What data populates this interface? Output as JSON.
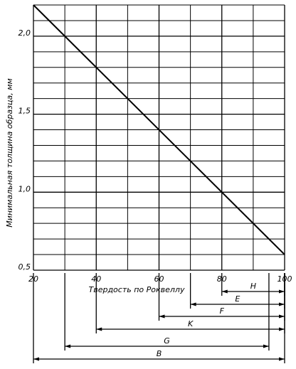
{
  "chart_data": {
    "type": "line",
    "ylabel": "Минимальная толщина образца, мм",
    "xlabel": "Твердость по Роквеллу",
    "x": [
      20,
      100
    ],
    "values": [
      2.2,
      0.6
    ],
    "color": "#000000",
    "xlim": [
      20,
      100
    ],
    "ylim": [
      0.5,
      2.2
    ],
    "xticks": [
      20,
      40,
      60,
      80,
      100
    ],
    "yticks": [
      {
        "value": 0.5,
        "label": "0,5"
      },
      {
        "value": 1.0,
        "label": "1,0"
      },
      {
        "value": 1.5,
        "label": "1,5"
      },
      {
        "value": 2.0,
        "label": "2,0"
      }
    ],
    "xminorticks": [
      30,
      50,
      70,
      90
    ],
    "yminorticks": [
      0.6,
      0.7,
      0.8,
      0.9,
      1.1,
      1.2,
      1.3,
      1.4,
      1.6,
      1.7,
      1.8,
      1.9,
      2.1,
      2.2
    ],
    "grid": true,
    "ranges": [
      {
        "label": "H",
        "from": 80,
        "to": 100
      },
      {
        "label": "E",
        "from": 70,
        "to": 100
      },
      {
        "label": "F",
        "from": 60,
        "to": 100
      },
      {
        "label": "K",
        "from": 40,
        "to": 100
      },
      {
        "label": "G",
        "from": 30,
        "to": 95
      },
      {
        "label": "B",
        "from": 20,
        "to": 100
      }
    ]
  }
}
